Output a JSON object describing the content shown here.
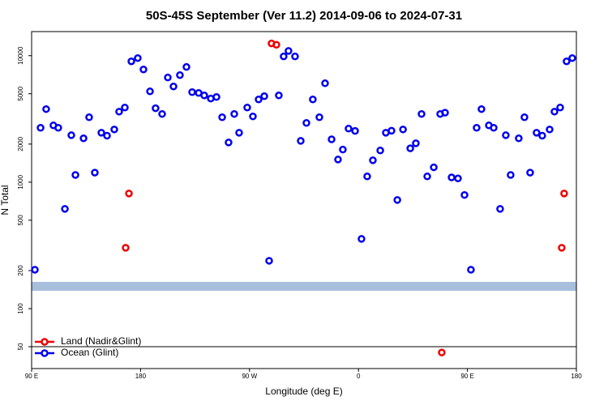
{
  "chart_data": {
    "type": "scatter",
    "title": "50S-45S September (Ver 11.2)   2014-09-06 to 2024-07-31",
    "x_label": "Longitude (deg E)",
    "y_label": "N Total",
    "xlim": [
      90,
      540
    ],
    "xticks": [
      {
        "value": 90,
        "label": "90 E"
      },
      {
        "value": 180,
        "label": "180"
      },
      {
        "value": 270,
        "label": "90 W"
      },
      {
        "value": 360,
        "label": "0"
      },
      {
        "value": 450,
        "label": "90 E"
      },
      {
        "value": 540,
        "label": "180"
      }
    ],
    "ylim": [
      33.6,
      15500
    ],
    "yticks": [
      50,
      100,
      200,
      500,
      1000,
      2000,
      5000,
      10000
    ],
    "log_y": true,
    "legend": "bottom-left",
    "series": [
      {
        "name": "Land (Nadir&Glint)",
        "color": "#ee0000",
        "x": [
          167.7,
          170.4,
          288.2,
          292.2,
          428.8,
          527.9,
          529.9
        ],
        "values": [
          303,
          814,
          12500,
          12200,
          45,
          303,
          814
        ]
      },
      {
        "name": "Ocean (Glint)",
        "color": "#0000ee",
        "x": [
          92.7,
          97.4,
          102,
          108,
          112,
          117.5,
          122.8,
          126.2,
          132.9,
          137.5,
          142.2,
          147.6,
          152.3,
          158.3,
          162.3,
          167,
          172.4,
          177.7,
          182.4,
          187.8,
          192.4,
          197.8,
          202.5,
          207.2,
          212.5,
          217.9,
          222.6,
          228,
          232.6,
          238,
          242.7,
          247.4,
          252.7,
          257.4,
          261.4,
          268.1,
          272.8,
          277.5,
          282.2,
          286.2,
          294.2,
          298.2,
          302.2,
          307.6,
          312.3,
          317,
          322.3,
          327.7,
          332.4,
          337.8,
          343.1,
          347.1,
          351.8,
          357.2,
          362.5,
          367.2,
          371.9,
          378,
          382.6,
          387.3,
          392.1,
          396.8,
          402.8,
          407.4,
          412.1,
          416.8,
          422.2,
          427.5,
          431.5,
          436.9,
          442.2,
          447.6,
          452.9,
          457.6,
          461.6,
          467.7,
          471.7,
          477,
          481.7,
          485.7,
          492.4,
          497.1,
          501.8,
          507.1,
          511.8,
          517.9,
          521.9,
          526.6,
          531.9,
          536.6
        ],
        "values": [
          203,
          2690,
          3780,
          2810,
          2690,
          615,
          2350,
          1140,
          2220,
          3260,
          1190,
          2460,
          2330,
          2610,
          3610,
          3890,
          9020,
          9570,
          7780,
          5220,
          3840,
          3460,
          6720,
          5710,
          7020,
          8140,
          5150,
          5070,
          4850,
          4580,
          4710,
          3260,
          2060,
          3460,
          2460,
          3890,
          3310,
          4510,
          4780,
          239,
          4850,
          9860,
          10900,
          9860,
          2120,
          2940,
          4510,
          3260,
          6050,
          2180,
          1510,
          1810,
          2650,
          2540,
          356,
          1110,
          1490,
          1780,
          2460,
          2550,
          723,
          2610,
          1850,
          2030,
          3460,
          1110,
          1310,
          3460,
          3540,
          1090,
          1070,
          792,
          203,
          2690,
          3780,
          2810,
          2690,
          615,
          2350,
          1140,
          2220,
          3260,
          1190,
          2460,
          2330,
          2610,
          3610,
          3890,
          9020,
          9570
        ]
      }
    ]
  }
}
